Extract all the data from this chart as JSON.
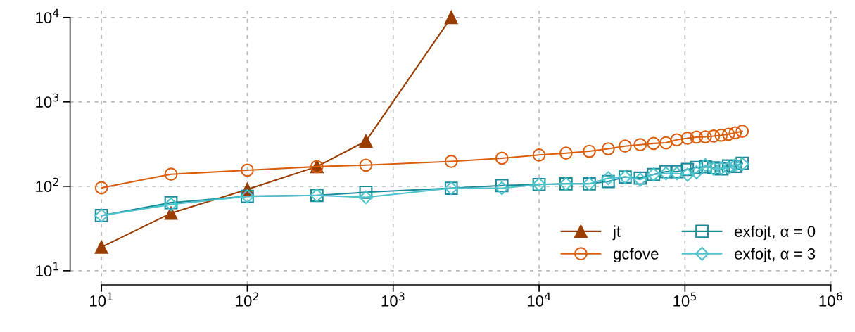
{
  "chart_data": {
    "type": "line",
    "log": "xy",
    "grid": true,
    "legend": "bottom right",
    "line_style": "solid",
    "xlim": [
      6.1,
      1180000
    ],
    "ylim": [
      6.8,
      13300
    ],
    "xticks": [
      {
        "value": 10,
        "label": "10$^{1}$"
      },
      {
        "value": 100,
        "label": "10$^{2}$"
      },
      {
        "value": 1000,
        "label": "10$^{3}$"
      },
      {
        "value": 10000,
        "label": "10$^{4}$"
      },
      {
        "value": 100000,
        "label": "10$^{5}$"
      },
      {
        "value": 1000000,
        "label": "10$^{6}$"
      }
    ],
    "yticks": [
      {
        "value": 10,
        "label": "10$^{1}$"
      },
      {
        "value": 100,
        "label": "10$^{2}$"
      },
      {
        "value": 1000,
        "label": "10$^{3}$"
      },
      {
        "value": 10000,
        "label": "10$^{4}$"
      }
    ],
    "series": [
      {
        "name": "jt",
        "color": "#993d00",
        "marker": "triangle",
        "x": [
          10,
          30,
          100,
          300,
          650,
          2500
        ],
        "values": [
          19,
          48,
          92,
          171,
          343,
          10000
        ]
      },
      {
        "name": "gcfove",
        "color": "#d95f0e",
        "marker": "circle",
        "x": [
          10,
          30,
          100,
          300,
          650,
          2500,
          5560,
          10000,
          15300,
          22100,
          29800,
          38900,
          49400,
          60900,
          74100,
          87900,
          104000,
          120000,
          138000,
          157000,
          177000,
          199000,
          221000,
          247000
        ],
        "values": [
          96,
          139,
          155,
          171,
          178,
          197,
          215,
          235,
          247,
          260,
          278,
          299,
          311,
          322,
          327,
          355,
          371,
          382,
          385,
          393,
          402,
          414,
          430,
          449
        ]
      },
      {
        "name": "exfojt, α = 0",
        "color": "#1b8a99",
        "marker": "square",
        "x": [
          10,
          30,
          100,
          300,
          650,
          2500,
          5560,
          10000,
          15300,
          22100,
          29800,
          38900,
          49400,
          60900,
          74100,
          87900,
          104000,
          120000,
          138000,
          157000,
          177000,
          199000,
          221000,
          247000
        ],
        "values": [
          45,
          64,
          76,
          78,
          85,
          95,
          102,
          105,
          107,
          107,
          114,
          129,
          125,
          138,
          149,
          149,
          158,
          167,
          170,
          165,
          161,
          174,
          172,
          187
        ]
      },
      {
        "name": "exfojt, α = 3",
        "color": "#4fc3cc",
        "marker": "diamond",
        "x": [
          10,
          30,
          100,
          300,
          650,
          2500,
          5560,
          10000,
          15300,
          22100,
          29800,
          38900,
          49400,
          60900,
          74100,
          87900,
          104000,
          120000,
          138000,
          157000,
          177000,
          199000,
          221000,
          247000
        ],
        "values": [
          45,
          61,
          76,
          78,
          74,
          95,
          95,
          105,
          107,
          107,
          125,
          129,
          120,
          138,
          142,
          142,
          137,
          146,
          178,
          161,
          163,
          165,
          178,
          183
        ]
      }
    ]
  }
}
